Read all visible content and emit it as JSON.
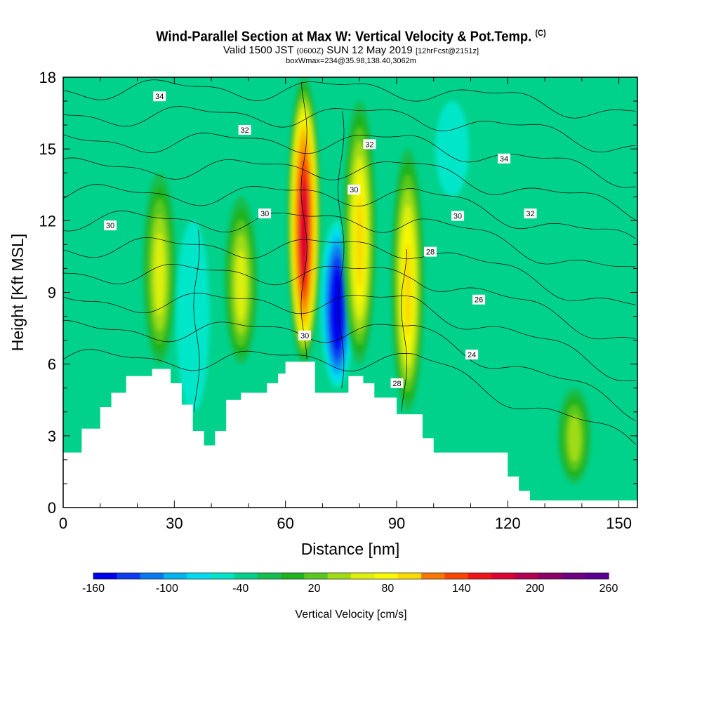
{
  "chart_data": {
    "type": "heatmap",
    "title": "Wind-Parallel Section at Max W: Vertical Velocity & Pot.Temp.",
    "title_mark": "(C)",
    "subtitle_prefix": "Valid 1500 JST",
    "subtitle_utc": "(0600Z)",
    "subtitle_date": "SUN 12 May 2019",
    "subtitle_fcst": "[12hrFcst@2151z]",
    "subtitle2": "boxWmax=234@35.98,138.40,3062m",
    "xlabel": "Distance [nm]",
    "ylabel": "Height [Kft MSL]",
    "xlim": [
      0,
      155
    ],
    "ylim": [
      0,
      18
    ],
    "x_ticks": [
      0,
      30,
      60,
      90,
      120,
      150
    ],
    "y_ticks": [
      0,
      3,
      6,
      9,
      12,
      15,
      18
    ],
    "colorbar": {
      "label": "Vertical Velocity [cm/s]",
      "min": -160,
      "max": 260,
      "step": 20,
      "tick_labels": [
        -160,
        -100,
        -40,
        20,
        80,
        140,
        200,
        260
      ],
      "colors": [
        "#0000f0",
        "#0a3cf0",
        "#0a78f0",
        "#00b4f0",
        "#00dcf0",
        "#00e6c8",
        "#00d28c",
        "#14be50",
        "#1eb41e",
        "#5ac81e",
        "#a0dc14",
        "#dcf00a",
        "#f8f800",
        "#f8dc00",
        "#f8be00",
        "#f8a000",
        "#f87800",
        "#f84600",
        "#f01414",
        "#dc0032",
        "#b40050",
        "#8c0064",
        "#6e0082",
        "#5a0096"
      ]
    },
    "vertical_velocity_cells_cm_s": [
      {
        "x_center_nm": 26,
        "height_range_kft": [
          6,
          14
        ],
        "peak": 70
      },
      {
        "x_center_nm": 35,
        "height_range_kft": [
          4,
          12
        ],
        "peak": -60
      },
      {
        "x_center_nm": 48,
        "height_range_kft": [
          6,
          13
        ],
        "peak": 60
      },
      {
        "x_center_nm": 65,
        "height_range_kft": [
          6,
          18
        ],
        "peak": 234
      },
      {
        "x_center_nm": 74,
        "height_range_kft": [
          5,
          12
        ],
        "peak": -160
      },
      {
        "x_center_nm": 80,
        "height_range_kft": [
          6,
          17
        ],
        "peak": 100
      },
      {
        "x_center_nm": 93,
        "height_range_kft": [
          4,
          15
        ],
        "peak": 110
      },
      {
        "x_center_nm": 105,
        "height_range_kft": [
          13,
          17
        ],
        "peak": -50
      },
      {
        "x_center_nm": 138,
        "height_range_kft": [
          1,
          5
        ],
        "peak": 40
      }
    ],
    "terrain_kft": {
      "x": [
        0,
        3,
        5,
        7,
        10,
        13,
        17,
        24,
        26,
        29,
        32,
        35,
        38,
        41,
        44,
        48,
        52,
        55,
        58,
        60,
        65,
        68,
        72,
        77,
        81,
        84,
        90,
        93,
        97,
        100,
        103,
        106,
        111,
        114,
        117,
        120,
        123,
        126,
        155
      ],
      "height": [
        2.3,
        2.3,
        3.3,
        3.3,
        4.2,
        4.8,
        5.5,
        5.8,
        5.8,
        5.2,
        4.3,
        3.2,
        2.6,
        3.2,
        4.5,
        4.8,
        4.8,
        5.2,
        5.6,
        6.1,
        6.1,
        4.8,
        4.8,
        5.5,
        5.2,
        4.6,
        3.9,
        3.9,
        2.9,
        2.3,
        2.3,
        2.3,
        2.3,
        2.3,
        2.3,
        1.3,
        0.7,
        0.3,
        0.3
      ]
    },
    "theta_contour_labels_C": [
      {
        "value": "34",
        "x": 26,
        "y": 17.2
      },
      {
        "value": "32",
        "x": 49,
        "y": 15.8
      },
      {
        "value": "30",
        "x": 12.7,
        "y": 11.8
      },
      {
        "value": "30",
        "x": 54.4,
        "y": 12.3
      },
      {
        "value": "30",
        "x": 78.5,
        "y": 13.3
      },
      {
        "value": "32",
        "x": 82.7,
        "y": 15.2
      },
      {
        "value": "30",
        "x": 65.2,
        "y": 7.2
      },
      {
        "value": "28",
        "x": 90.1,
        "y": 5.2
      },
      {
        "value": "28",
        "x": 99.1,
        "y": 10.7
      },
      {
        "value": "30",
        "x": 106.5,
        "y": 12.2
      },
      {
        "value": "34",
        "x": 119,
        "y": 14.6
      },
      {
        "value": "32",
        "x": 126.1,
        "y": 12.3
      },
      {
        "value": "26",
        "x": 112.2,
        "y": 8.7
      },
      {
        "value": "24",
        "x": 110.3,
        "y": 6.4
      }
    ]
  }
}
